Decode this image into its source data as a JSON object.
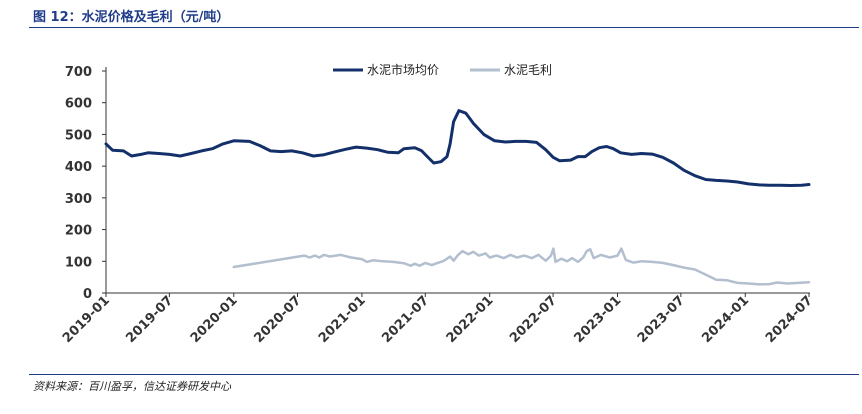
{
  "figure": {
    "title": "图 12：水泥价格及毛利（元/吨）",
    "source": "资料来源：百川盈孚，信达证券研发中心"
  },
  "chart_data": {
    "type": "line",
    "xlabel": "",
    "ylabel": "",
    "ylim": [
      0,
      700
    ],
    "yticks": [
      0,
      100,
      200,
      300,
      400,
      500,
      600,
      700
    ],
    "xticks": [
      "2019-01",
      "2019-07",
      "2020-01",
      "2020-07",
      "2021-01",
      "2021-07",
      "2022-01",
      "2022-07",
      "2023-01",
      "2023-07",
      "2024-01",
      "2024-07"
    ],
    "grid": false,
    "legend": "top",
    "colors": {
      "price": "#14306b",
      "margin": "#b3bfcf"
    },
    "series": [
      {
        "name": "水泥市场均价",
        "color": "#14306b",
        "points": [
          [
            "2019-01-01",
            470
          ],
          [
            "2019-01-20",
            450
          ],
          [
            "2019-02-20",
            448
          ],
          [
            "2019-03-15",
            432
          ],
          [
            "2019-04-15",
            438
          ],
          [
            "2019-05-01",
            442
          ],
          [
            "2019-06-01",
            440
          ],
          [
            "2019-07-01",
            437
          ],
          [
            "2019-08-01",
            432
          ],
          [
            "2019-09-01",
            440
          ],
          [
            "2019-10-01",
            448
          ],
          [
            "2019-11-01",
            455
          ],
          [
            "2019-12-01",
            470
          ],
          [
            "2020-01-01",
            480
          ],
          [
            "2020-02-15",
            478
          ],
          [
            "2020-03-15",
            465
          ],
          [
            "2020-04-15",
            448
          ],
          [
            "2020-05-15",
            446
          ],
          [
            "2020-06-15",
            448
          ],
          [
            "2020-07-15",
            442
          ],
          [
            "2020-08-15",
            432
          ],
          [
            "2020-09-15",
            436
          ],
          [
            "2020-10-15",
            445
          ],
          [
            "2020-11-15",
            453
          ],
          [
            "2020-12-15",
            460
          ],
          [
            "2021-01-15",
            457
          ],
          [
            "2021-02-15",
            452
          ],
          [
            "2021-03-15",
            444
          ],
          [
            "2021-04-15",
            442
          ],
          [
            "2021-05-01",
            455
          ],
          [
            "2021-06-01",
            458
          ],
          [
            "2021-06-20",
            449
          ],
          [
            "2021-07-05",
            432
          ],
          [
            "2021-07-25",
            410
          ],
          [
            "2021-08-15",
            414
          ],
          [
            "2021-09-01",
            430
          ],
          [
            "2021-09-10",
            470
          ],
          [
            "2021-09-20",
            540
          ],
          [
            "2021-10-05",
            575
          ],
          [
            "2021-10-25",
            567
          ],
          [
            "2021-11-15",
            535
          ],
          [
            "2021-12-15",
            500
          ],
          [
            "2022-01-15",
            480
          ],
          [
            "2022-02-15",
            476
          ],
          [
            "2022-03-15",
            478
          ],
          [
            "2022-04-15",
            478
          ],
          [
            "2022-05-15",
            475
          ],
          [
            "2022-06-10",
            452
          ],
          [
            "2022-07-01",
            428
          ],
          [
            "2022-07-20",
            417
          ],
          [
            "2022-08-20",
            419
          ],
          [
            "2022-09-10",
            430
          ],
          [
            "2022-10-01",
            430
          ],
          [
            "2022-10-20",
            446
          ],
          [
            "2022-11-10",
            458
          ],
          [
            "2022-12-01",
            462
          ],
          [
            "2022-12-20",
            455
          ],
          [
            "2023-01-10",
            442
          ],
          [
            "2023-02-10",
            437
          ],
          [
            "2023-03-10",
            440
          ],
          [
            "2023-04-10",
            438
          ],
          [
            "2023-05-10",
            428
          ],
          [
            "2023-06-10",
            410
          ],
          [
            "2023-07-10",
            387
          ],
          [
            "2023-08-10",
            370
          ],
          [
            "2023-09-10",
            358
          ],
          [
            "2023-10-10",
            355
          ],
          [
            "2023-11-10",
            353
          ],
          [
            "2023-12-10",
            350
          ],
          [
            "2024-01-10",
            344
          ],
          [
            "2024-02-10",
            341
          ],
          [
            "2024-03-10",
            340
          ],
          [
            "2024-04-10",
            340
          ],
          [
            "2024-05-10",
            339
          ],
          [
            "2024-06-10",
            340
          ],
          [
            "2024-07-01",
            342
          ]
        ]
      },
      {
        "name": "水泥毛利",
        "color": "#b3bfcf",
        "points": [
          [
            "2020-01-01",
            82
          ],
          [
            "2020-07-20",
            118
          ],
          [
            "2020-08-05",
            112
          ],
          [
            "2020-08-20",
            118
          ],
          [
            "2020-09-01",
            112
          ],
          [
            "2020-09-15",
            120
          ],
          [
            "2020-10-01",
            115
          ],
          [
            "2020-11-01",
            120
          ],
          [
            "2020-12-01",
            112
          ],
          [
            "2021-01-01",
            107
          ],
          [
            "2021-01-15",
            98
          ],
          [
            "2021-02-01",
            103
          ],
          [
            "2021-03-01",
            100
          ],
          [
            "2021-04-01",
            98
          ],
          [
            "2021-05-01",
            94
          ],
          [
            "2021-05-20",
            86
          ],
          [
            "2021-06-01",
            92
          ],
          [
            "2021-06-15",
            86
          ],
          [
            "2021-07-01",
            95
          ],
          [
            "2021-07-20",
            88
          ],
          [
            "2021-08-05",
            95
          ],
          [
            "2021-08-20",
            100
          ],
          [
            "2021-09-01",
            108
          ],
          [
            "2021-09-10",
            115
          ],
          [
            "2021-09-20",
            102
          ],
          [
            "2021-10-01",
            118
          ],
          [
            "2021-10-15",
            132
          ],
          [
            "2021-11-01",
            122
          ],
          [
            "2021-11-15",
            130
          ],
          [
            "2021-12-01",
            118
          ],
          [
            "2021-12-20",
            125
          ],
          [
            "2022-01-01",
            112
          ],
          [
            "2022-01-20",
            118
          ],
          [
            "2022-02-10",
            110
          ],
          [
            "2022-03-01",
            120
          ],
          [
            "2022-03-20",
            112
          ],
          [
            "2022-04-10",
            118
          ],
          [
            "2022-05-01",
            110
          ],
          [
            "2022-05-20",
            120
          ],
          [
            "2022-06-10",
            102
          ],
          [
            "2022-06-25",
            118
          ],
          [
            "2022-07-02",
            140
          ],
          [
            "2022-07-08",
            98
          ],
          [
            "2022-07-25",
            108
          ],
          [
            "2022-08-10",
            100
          ],
          [
            "2022-08-25",
            110
          ],
          [
            "2022-09-10",
            98
          ],
          [
            "2022-09-25",
            112
          ],
          [
            "2022-10-05",
            132
          ],
          [
            "2022-10-15",
            138
          ],
          [
            "2022-10-25",
            110
          ],
          [
            "2022-11-15",
            120
          ],
          [
            "2022-12-10",
            112
          ],
          [
            "2023-01-01",
            118
          ],
          [
            "2023-01-12",
            140
          ],
          [
            "2023-01-25",
            104
          ],
          [
            "2023-02-15",
            96
          ],
          [
            "2023-03-10",
            100
          ],
          [
            "2023-04-10",
            98
          ],
          [
            "2023-05-10",
            95
          ],
          [
            "2023-06-10",
            88
          ],
          [
            "2023-07-10",
            80
          ],
          [
            "2023-08-10",
            74
          ],
          [
            "2023-09-10",
            58
          ],
          [
            "2023-10-10",
            42
          ],
          [
            "2023-11-10",
            40
          ],
          [
            "2023-12-10",
            32
          ],
          [
            "2024-01-10",
            30
          ],
          [
            "2024-02-10",
            27
          ],
          [
            "2024-03-10",
            28
          ],
          [
            "2024-04-01",
            33
          ],
          [
            "2024-05-01",
            30
          ],
          [
            "2024-06-01",
            32
          ],
          [
            "2024-07-01",
            34
          ]
        ]
      }
    ]
  }
}
